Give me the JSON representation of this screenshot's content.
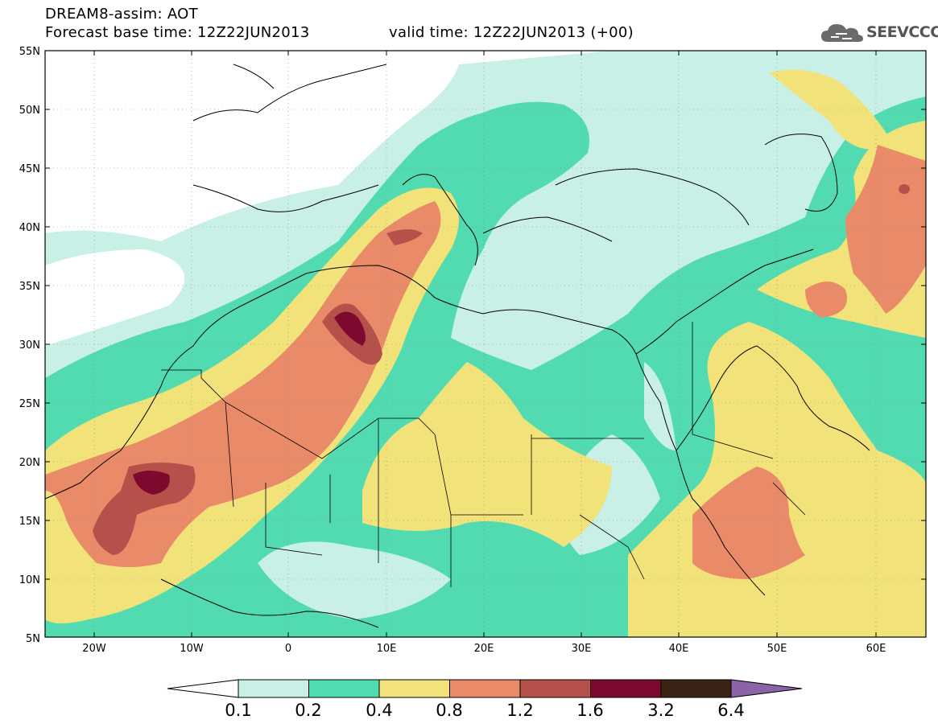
{
  "header": {
    "line1": "DREAM8-assim: AOT",
    "line2": "Forecast base time: 12Z22JUN2013",
    "valid": "valid time: 12Z22JUN2013 (+00)",
    "logo_text": "SEEVCCC",
    "logo_icon": "cloud-icon"
  },
  "map": {
    "lon_range": [
      -25,
      65
    ],
    "lat_range": [
      5,
      55
    ],
    "lat_ticks": [
      "55N",
      "50N",
      "45N",
      "40N",
      "35N",
      "30N",
      "25N",
      "20N",
      "15N",
      "10N",
      "5N"
    ],
    "lon_ticks": [
      "20W",
      "10W",
      "0",
      "10E",
      "20E",
      "30E",
      "40E",
      "50E",
      "60E"
    ]
  },
  "colorbar": {
    "labels": [
      "0.1",
      "0.2",
      "0.4",
      "0.8",
      "1.2",
      "1.6",
      "3.2",
      "6.4"
    ],
    "colors": [
      "#ffffff",
      "#c9f0e6",
      "#52dbb0",
      "#f2e27a",
      "#e98b68",
      "#b5514a",
      "#7d0a2e",
      "#3b2416",
      "#8a64a6"
    ]
  }
}
